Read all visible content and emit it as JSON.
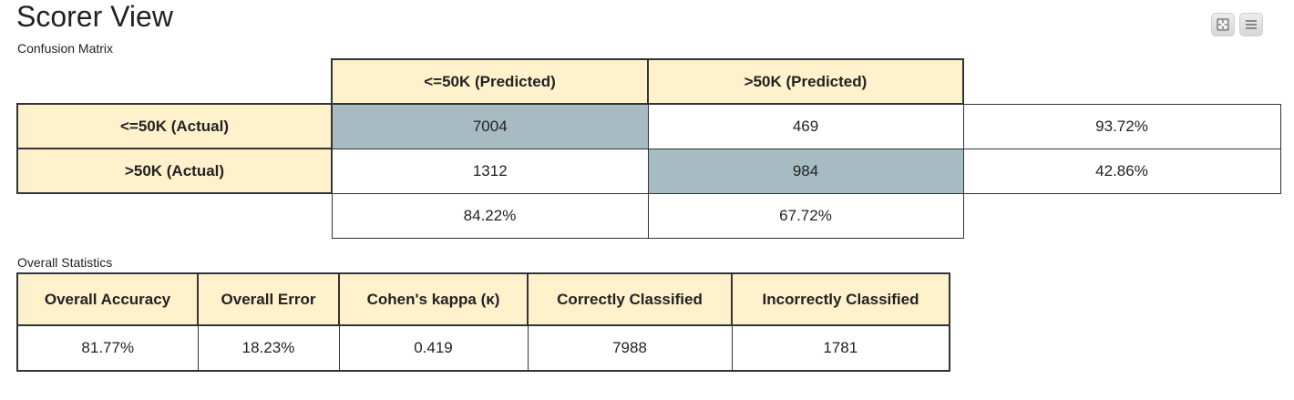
{
  "header": {
    "title": "Scorer View",
    "subtitle": "Confusion Matrix"
  },
  "toolbar": {
    "fullscreen_icon": "fullscreen-icon",
    "menu_icon": "menu-icon"
  },
  "confusion_matrix": {
    "col_headers": [
      "<=50K (Predicted)",
      ">50K (Predicted)"
    ],
    "rows": [
      {
        "label": "<=50K (Actual)",
        "values": [
          "7004",
          "469"
        ],
        "rate": "93.72%"
      },
      {
        "label": ">50K (Actual)",
        "values": [
          "1312",
          "984"
        ],
        "rate": "42.86%"
      }
    ],
    "col_rates": [
      "84.22%",
      "67.72%"
    ]
  },
  "stats": {
    "label": "Overall Statistics",
    "headers": [
      "Overall Accuracy",
      "Overall Error",
      "Cohen's kappa (κ)",
      "Correctly Classified",
      "Incorrectly Classified"
    ],
    "values": [
      "81.77%",
      "18.23%",
      "0.419",
      "7988",
      "1781"
    ]
  },
  "colors": {
    "header_bg": "#fff1cc",
    "diagonal_bg": "#a6bcc2",
    "border": "#333333"
  }
}
